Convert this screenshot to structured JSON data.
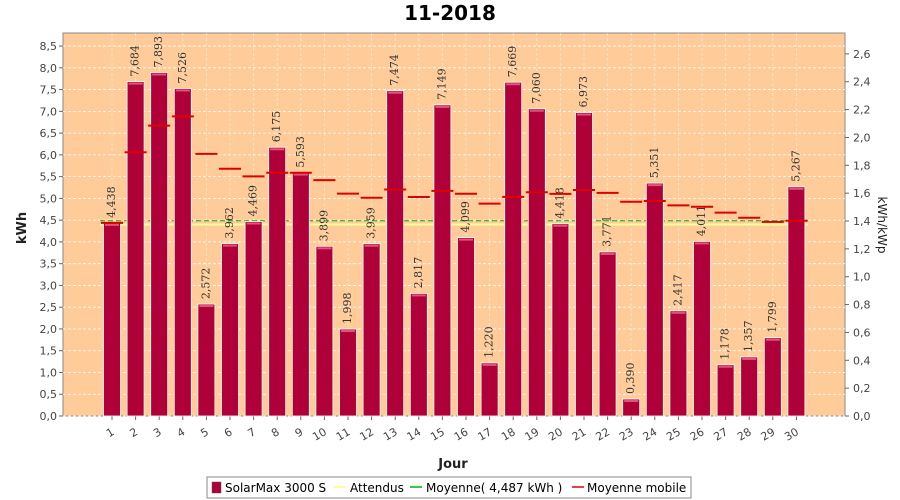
{
  "chart_data": {
    "type": "bar",
    "title": "11-2018",
    "xlabel": "Jour",
    "ylabel": "kWh",
    "y2label": "kWh/kWp",
    "ylim": [
      0,
      8.8
    ],
    "yticks": [
      "0,0",
      "0,5",
      "1,0",
      "1,5",
      "2,0",
      "2,5",
      "3,0",
      "3,5",
      "4,0",
      "4,5",
      "5,0",
      "5,5",
      "6,0",
      "6,5",
      "7,0",
      "7,5",
      "8,0",
      "8,5"
    ],
    "y2ticks": [
      "0,0",
      "0,2",
      "0,4",
      "0,6",
      "0,8",
      "1,0",
      "1,2",
      "1,4",
      "1,6",
      "1,8",
      "2,0",
      "2,2",
      "2,4",
      "2,6"
    ],
    "categories": [
      "1",
      "2",
      "3",
      "4",
      "5",
      "6",
      "7",
      "8",
      "9",
      "10",
      "11",
      "12",
      "13",
      "14",
      "15",
      "16",
      "17",
      "18",
      "19",
      "20",
      "21",
      "22",
      "23",
      "24",
      "25",
      "26",
      "27",
      "28",
      "29",
      "30"
    ],
    "series": [
      {
        "name": "SolarMax 3000 S",
        "values": [
          4.438,
          7.684,
          7.893,
          7.526,
          2.572,
          3.962,
          4.469,
          6.175,
          5.593,
          3.899,
          1.998,
          3.959,
          7.474,
          2.817,
          7.149,
          4.099,
          1.22,
          7.669,
          7.06,
          4.418,
          6.973,
          3.771,
          0.39,
          5.351,
          2.417,
          4.011,
          1.178,
          1.357,
          1.799,
          5.267
        ],
        "labels": [
          "4,438",
          "7,684",
          "7,893",
          "7,526",
          "2,572",
          "3,962",
          "4,469",
          "6,175",
          "5,593",
          "3,899",
          "1,998",
          "3,959",
          "7,474",
          "2,817",
          "7,149",
          "4,099",
          "1,220",
          "7,669",
          "7,060",
          "4,418",
          "6,973",
          "3,771",
          "0,390",
          "5,351",
          "2,417",
          "4,011",
          "1,178",
          "1,357",
          "1,799",
          "5,267"
        ],
        "color": "#b0003a"
      },
      {
        "name": "Attendus",
        "value": 4.4,
        "color": "#ffff99"
      },
      {
        "name": "Moyenne( 4,487 kWh )",
        "value": 4.487,
        "color": "#00b000"
      },
      {
        "name": "Moyenne mobile",
        "values": [
          4.438,
          6.061,
          6.672,
          6.885,
          6.022,
          5.68,
          5.507,
          5.59,
          5.59,
          5.421,
          5.11,
          5.014,
          5.203,
          5.033,
          5.174,
          5.107,
          4.879,
          5.034,
          5.14,
          5.104,
          5.193,
          5.128,
          4.922,
          4.94,
          4.839,
          4.807,
          4.672,
          4.554,
          4.459,
          4.487
        ],
        "color": "#dd0000"
      }
    ],
    "plot_background": "#ffcc99",
    "grid": true,
    "legend_position": "bottom"
  }
}
